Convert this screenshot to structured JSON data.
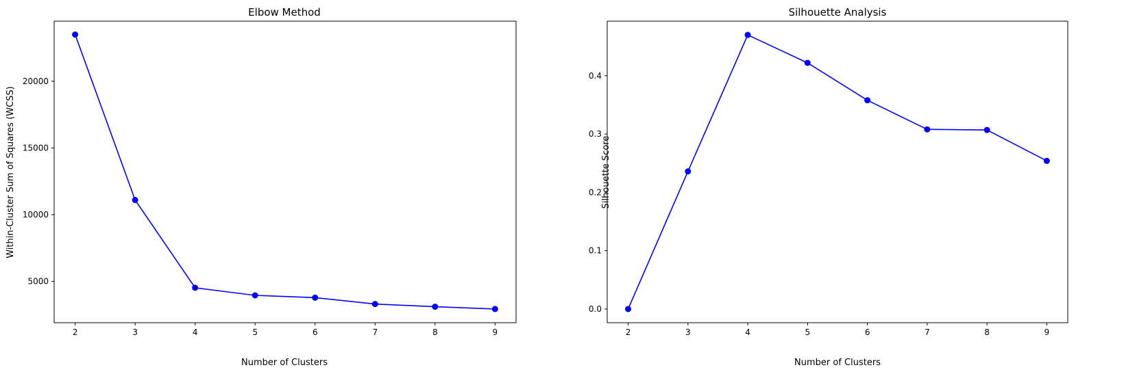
{
  "colors": {
    "series": "#0000ff",
    "axes": "#000000",
    "background": "#ffffff"
  },
  "chart_data": [
    {
      "type": "line",
      "title": "Elbow Method",
      "xlabel": "Number of Clusters",
      "ylabel": "Within-Cluster Sum of Squares (WCSS)",
      "x": [
        2,
        3,
        4,
        5,
        6,
        7,
        8,
        9
      ],
      "series": [
        {
          "values": [
            23500,
            11100,
            4520,
            3950,
            3780,
            3300,
            3100,
            2930
          ],
          "marker": "circle",
          "color": "#0000ff"
        }
      ],
      "xlim": [
        1.65,
        9.35
      ],
      "ylim": [
        1900,
        24500
      ],
      "xticks": [
        2,
        3,
        4,
        5,
        6,
        7,
        8,
        9
      ],
      "yticks": [
        5000,
        10000,
        15000,
        20000
      ],
      "grid": false
    },
    {
      "type": "line",
      "title": "Silhouette Analysis",
      "xlabel": "Number of Clusters",
      "ylabel": "Silhouette Score",
      "x": [
        2,
        3,
        4,
        5,
        6,
        7,
        8,
        9
      ],
      "series": [
        {
          "values": [
            0.0,
            0.236,
            0.47,
            0.422,
            0.358,
            0.308,
            0.307,
            0.254
          ],
          "marker": "circle",
          "color": "#0000ff"
        }
      ],
      "xlim": [
        1.65,
        9.35
      ],
      "ylim": [
        -0.0235,
        0.4935
      ],
      "xticks": [
        2,
        3,
        4,
        5,
        6,
        7,
        8,
        9
      ],
      "yticks": [
        0.0,
        0.1,
        0.2,
        0.3,
        0.4
      ],
      "ytick_labels": [
        "0.0",
        "0.1",
        "0.2",
        "0.3",
        "0.4"
      ],
      "grid": false
    }
  ]
}
